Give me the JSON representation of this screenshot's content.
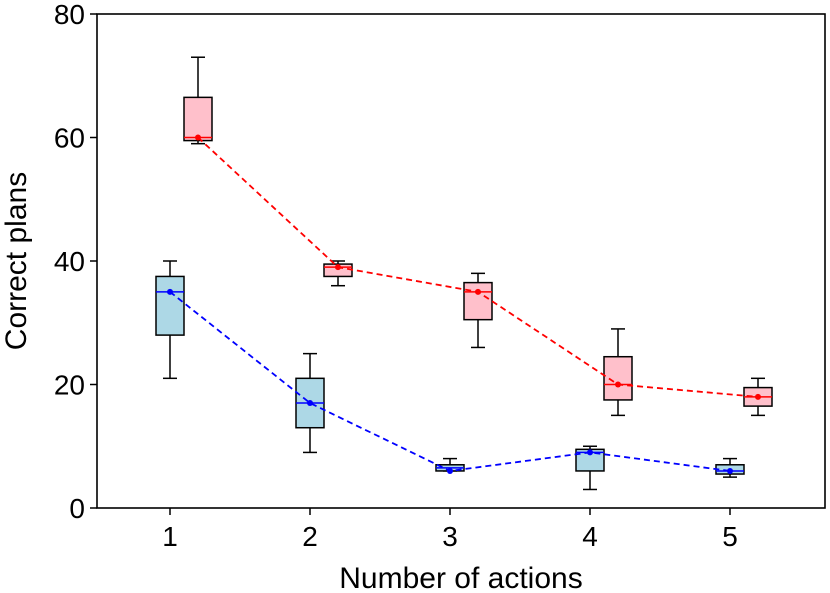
{
  "chart_data": {
    "type": "box",
    "title": "",
    "xlabel": "Number of actions",
    "ylabel": "Correct plans",
    "categories": [
      "1",
      "2",
      "3",
      "4",
      "5"
    ],
    "ylim": [
      0,
      80
    ],
    "yticks": [
      "0",
      "20",
      "40",
      "60",
      "80"
    ],
    "grid": false,
    "series": [
      {
        "name": "blue",
        "color": "#0000ff",
        "box_fill": "#add8e6",
        "boxes": [
          {
            "category": "1",
            "whisker_low": 21,
            "q1": 28,
            "median": 35,
            "q3": 37.5,
            "whisker_high": 40
          },
          {
            "category": "2",
            "whisker_low": 9,
            "q1": 13,
            "median": 17,
            "q3": 21,
            "whisker_high": 25
          },
          {
            "category": "3",
            "whisker_low": 6,
            "q1": 6,
            "median": 6.5,
            "q3": 7,
            "whisker_high": 8
          },
          {
            "category": "4",
            "whisker_low": 3,
            "q1": 6,
            "median": 9,
            "q3": 9.5,
            "whisker_high": 10
          },
          {
            "category": "5",
            "whisker_low": 5,
            "q1": 5.5,
            "median": 6,
            "q3": 7,
            "whisker_high": 8
          }
        ],
        "mean_line": [
          35,
          17,
          6,
          9,
          6
        ]
      },
      {
        "name": "red",
        "color": "#ff0000",
        "box_fill": "#ffc0cb",
        "boxes": [
          {
            "category": "1",
            "whisker_low": 59,
            "q1": 59.5,
            "median": 60,
            "q3": 66.5,
            "whisker_high": 73
          },
          {
            "category": "2",
            "whisker_low": 36,
            "q1": 37.5,
            "median": 39,
            "q3": 39.5,
            "whisker_high": 40
          },
          {
            "category": "3",
            "whisker_low": 26,
            "q1": 30.5,
            "median": 35,
            "q3": 36.5,
            "whisker_high": 38
          },
          {
            "category": "4",
            "whisker_low": 15,
            "q1": 17.5,
            "median": 20,
            "q3": 24.5,
            "whisker_high": 29
          },
          {
            "category": "5",
            "whisker_low": 15,
            "q1": 16.5,
            "median": 18,
            "q3": 19.5,
            "whisker_high": 21
          }
        ],
        "mean_line": [
          60,
          39,
          35,
          20,
          18
        ]
      }
    ]
  }
}
